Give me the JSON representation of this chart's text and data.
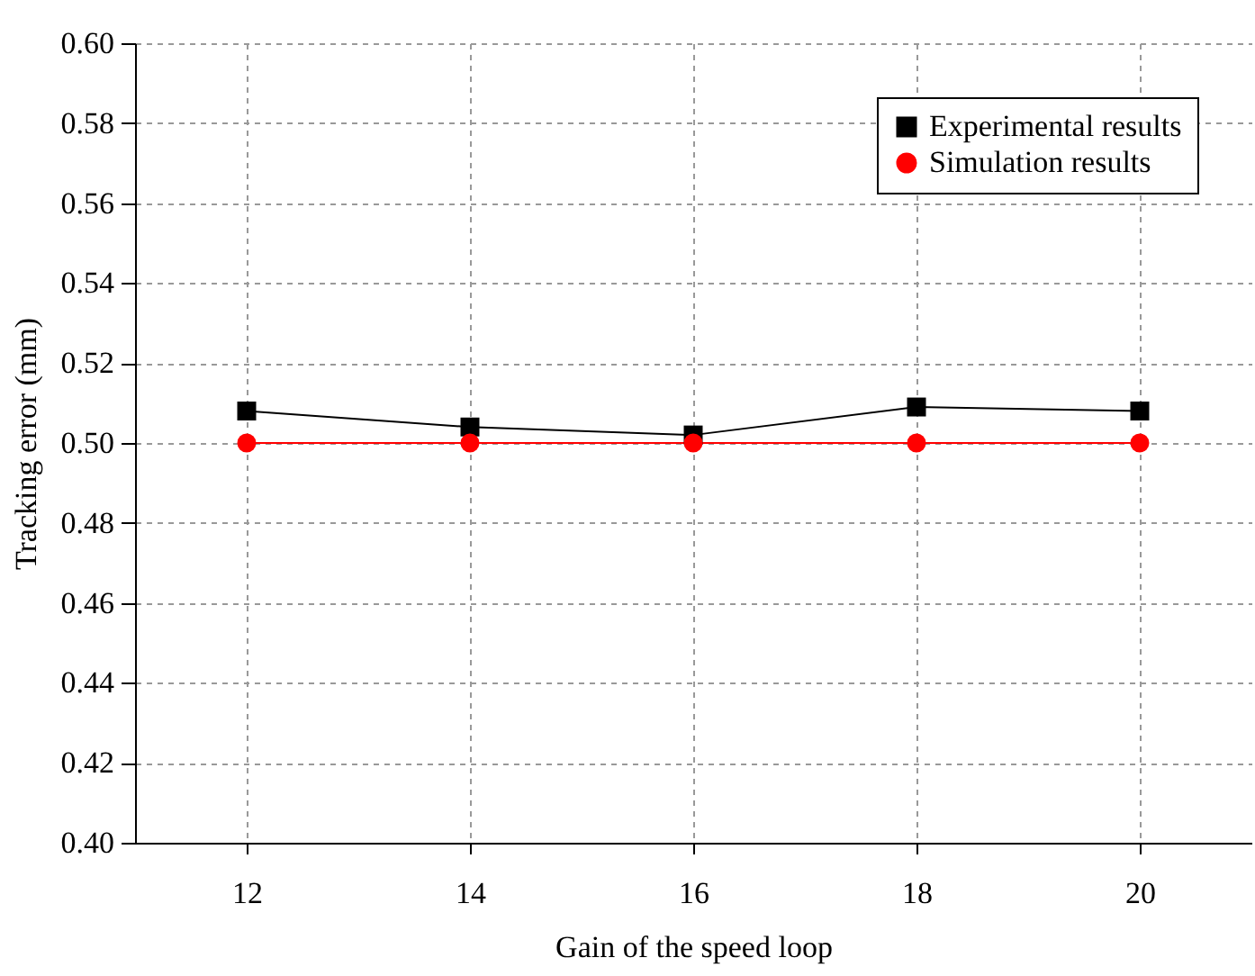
{
  "chart_data": {
    "type": "line",
    "xlabel": "Gain of the speed loop",
    "ylabel": "Tracking error (mm)",
    "x": [
      12,
      14,
      16,
      18,
      20
    ],
    "series": [
      {
        "name": "Experimental results",
        "color": "#000000",
        "marker": "square",
        "values": [
          0.508,
          0.504,
          0.502,
          0.509,
          0.508
        ]
      },
      {
        "name": "Simulation results",
        "color": "#ff0000",
        "marker": "circle",
        "values": [
          0.5,
          0.5,
          0.5,
          0.5,
          0.5
        ]
      }
    ],
    "xlim": [
      11,
      21
    ],
    "xticks": [
      12,
      14,
      16,
      18,
      20
    ],
    "ylim": [
      0.4,
      0.6
    ],
    "yticks": [
      {
        "value": 0.4,
        "label": "0.40"
      },
      0.42,
      0.44,
      0.46,
      0.48,
      {
        "value": 0.5,
        "label": "0.50"
      },
      0.52,
      0.54,
      0.56,
      0.58,
      {
        "value": 0.6,
        "label": "0.60"
      }
    ],
    "grid": true,
    "legend": "top right",
    "line_style": "solid"
  }
}
